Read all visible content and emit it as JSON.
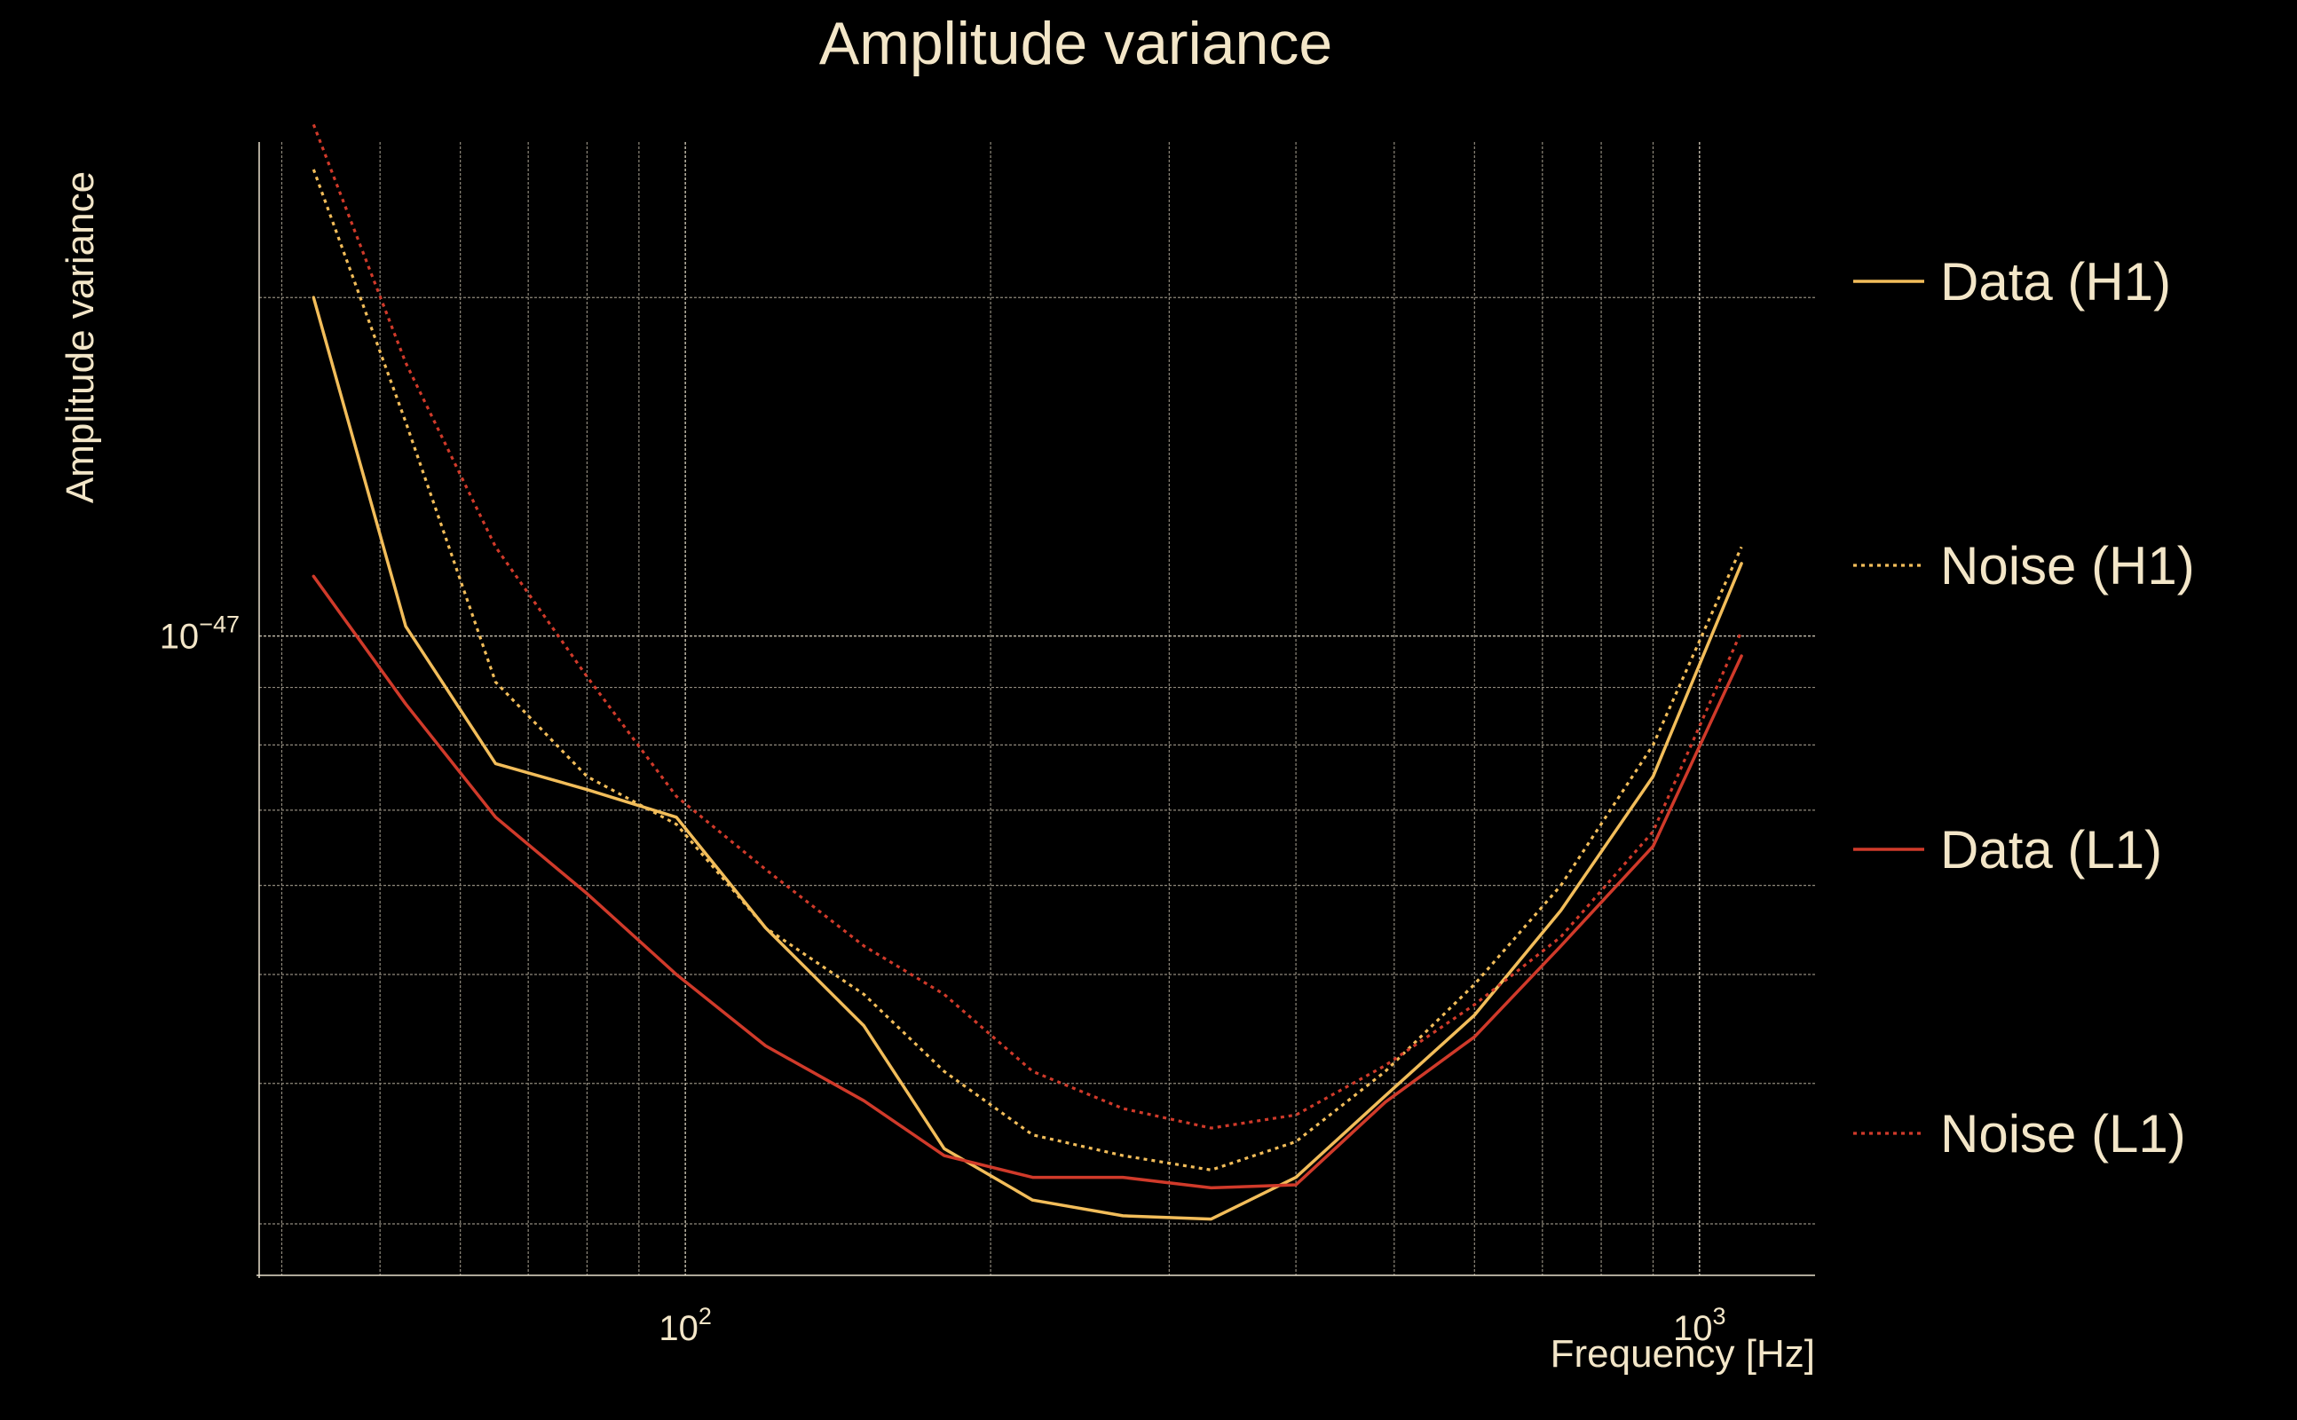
{
  "chart_data": {
    "type": "line",
    "title": "Amplitude variance",
    "xlabel": "Frequency [Hz]",
    "ylabel": "Amplitude variance",
    "xscale": "log",
    "yscale": "log",
    "xlim": [
      38,
      1300
    ],
    "ylim": [
      0.27,
      2.75
    ],
    "y_unit_exponent": -47,
    "x_ticks": [
      {
        "value": 100,
        "base": "10",
        "exp": "2"
      },
      {
        "value": 1000,
        "base": "10",
        "exp": "3"
      }
    ],
    "y_ticks": [
      {
        "value": 1,
        "base": "10",
        "exp": "−47"
      }
    ],
    "x_minor_ticks": [
      40,
      50,
      60,
      70,
      80,
      90,
      200,
      300,
      400,
      500,
      600,
      700,
      800,
      900
    ],
    "y_minor_ticks": [
      0.3,
      0.4,
      0.5,
      0.6,
      0.7,
      0.8,
      0.9,
      2
    ],
    "grid": true,
    "legend_position": "right",
    "series": [
      {
        "name": "Data (H1)",
        "color": "#f2bd5a",
        "dash": "solid",
        "x": [
          43,
          53,
          65,
          80,
          98,
          120,
          150,
          180,
          220,
          270,
          330,
          400,
          490,
          600,
          730,
          900,
          1100
        ],
        "y": [
          2.0,
          1.02,
          0.77,
          0.73,
          0.69,
          0.55,
          0.45,
          0.35,
          0.315,
          0.305,
          0.303,
          0.33,
          0.39,
          0.46,
          0.57,
          0.75,
          1.16
        ]
      },
      {
        "name": "Noise (H1)",
        "color": "#f2bd5a",
        "dash": "dotted",
        "x": [
          43,
          53,
          65,
          80,
          98,
          120,
          150,
          180,
          220,
          270,
          330,
          400,
          490,
          600,
          730,
          900,
          1100
        ],
        "y": [
          2.6,
          1.55,
          0.91,
          0.75,
          0.68,
          0.55,
          0.48,
          0.41,
          0.36,
          0.345,
          0.335,
          0.355,
          0.41,
          0.49,
          0.6,
          0.8,
          1.2
        ]
      },
      {
        "name": "Data (L1)",
        "color": "#d03a2a",
        "dash": "solid",
        "x": [
          43,
          53,
          65,
          80,
          98,
          120,
          150,
          180,
          220,
          270,
          330,
          400,
          490,
          600,
          730,
          900,
          1100
        ],
        "y": [
          1.13,
          0.87,
          0.69,
          0.59,
          0.5,
          0.432,
          0.386,
          0.345,
          0.33,
          0.33,
          0.323,
          0.325,
          0.385,
          0.44,
          0.53,
          0.65,
          0.96
        ]
      },
      {
        "name": "Noise (L1)",
        "color": "#d03a2a",
        "dash": "dotted",
        "x": [
          43,
          53,
          65,
          80,
          98,
          120,
          150,
          180,
          220,
          270,
          330,
          400,
          490,
          600,
          730,
          900,
          1100
        ],
        "y": [
          2.85,
          1.75,
          1.2,
          0.92,
          0.72,
          0.62,
          0.53,
          0.48,
          0.41,
          0.38,
          0.365,
          0.375,
          0.415,
          0.47,
          0.54,
          0.67,
          1.01
        ]
      }
    ]
  }
}
